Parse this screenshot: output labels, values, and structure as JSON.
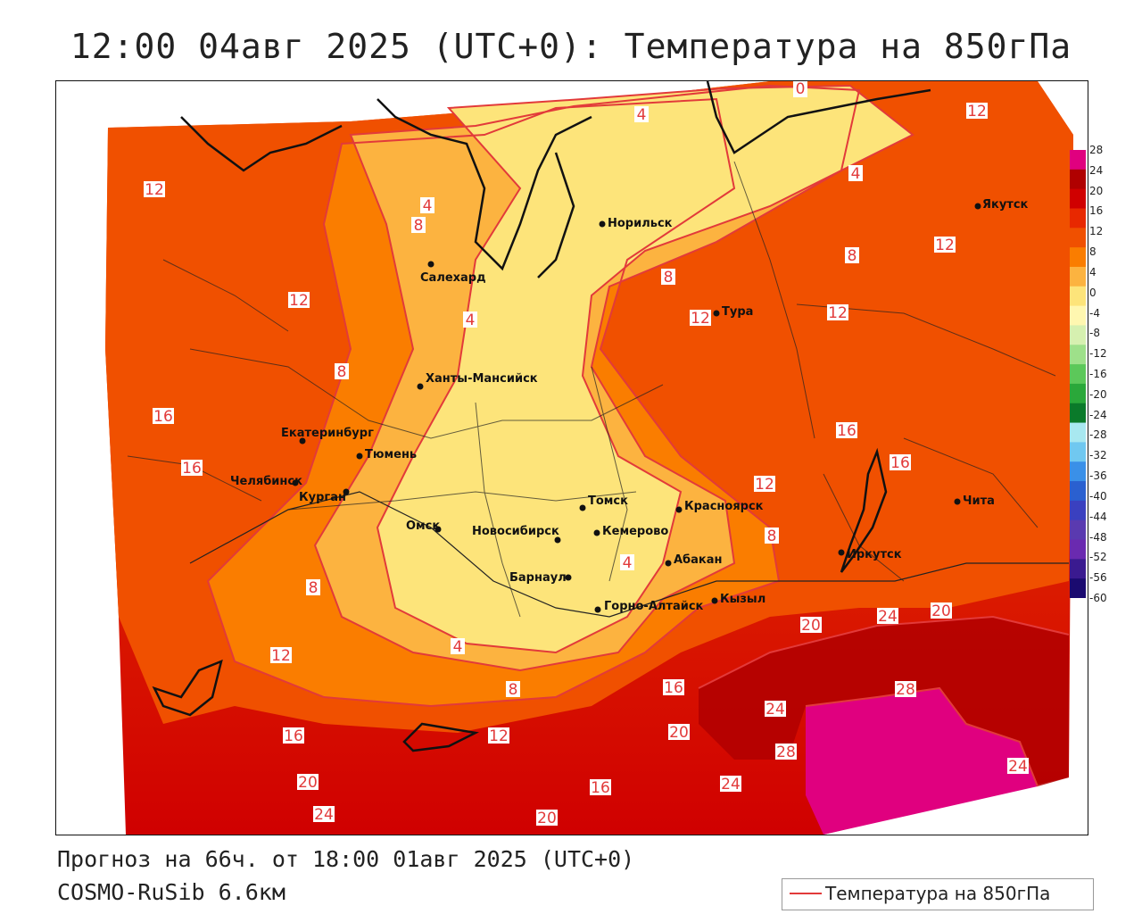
{
  "title": "12:00 04авг 2025 (UTC+0): Температура на 850гПа",
  "forecast_line": "Прогноз на 66ч. от 18:00 01авг 2025 (UTC+0)",
  "model_line": "COSMO-RuSib 6.6км",
  "legend": {
    "label": "Температура на 850гПа",
    "line_color": "#e23a3a"
  },
  "colorbar": {
    "ticks": [
      "28",
      "24",
      "20",
      "16",
      "12",
      "8",
      "4",
      "0",
      "-4",
      "-8",
      "-12",
      "-16",
      "-20",
      "-24",
      "-28",
      "-32",
      "-36",
      "-40",
      "-44",
      "-48",
      "-52",
      "-56",
      "-60"
    ],
    "colors": [
      "#e0007f",
      "#b00000",
      "#d00000",
      "#e82800",
      "#f05000",
      "#fa7d00",
      "#fcb340",
      "#fde47a",
      "#fff7b0",
      "#d6f0b0",
      "#9ee08a",
      "#5cc85a",
      "#2aa83a",
      "#0a7a2a",
      "#a8e8f0",
      "#70c8f0",
      "#3a90e8",
      "#2a60d0",
      "#3a40c0",
      "#5a3ab0",
      "#6a2ab0",
      "#3a1a90",
      "#1a0a70"
    ]
  },
  "cities": [
    {
      "name": "Салехард"
    },
    {
      "name": "Норильск"
    },
    {
      "name": "Якутск"
    },
    {
      "name": "Тура"
    },
    {
      "name": "Ханты-Мансийск"
    },
    {
      "name": "Екатеринбург"
    },
    {
      "name": "Тюмень"
    },
    {
      "name": "Челябинск"
    },
    {
      "name": "Курган"
    },
    {
      "name": "Омск"
    },
    {
      "name": "Новосибирск"
    },
    {
      "name": "Томск"
    },
    {
      "name": "Кемерово"
    },
    {
      "name": "Красноярск"
    },
    {
      "name": "Барнаул"
    },
    {
      "name": "Абакан"
    },
    {
      "name": "Горно-Алтайск"
    },
    {
      "name": "Кызыл"
    },
    {
      "name": "Иркутск"
    },
    {
      "name": "Чита"
    }
  ],
  "contour_labels": [
    "0",
    "4",
    "8",
    "12",
    "16",
    "20",
    "24",
    "28"
  ]
}
